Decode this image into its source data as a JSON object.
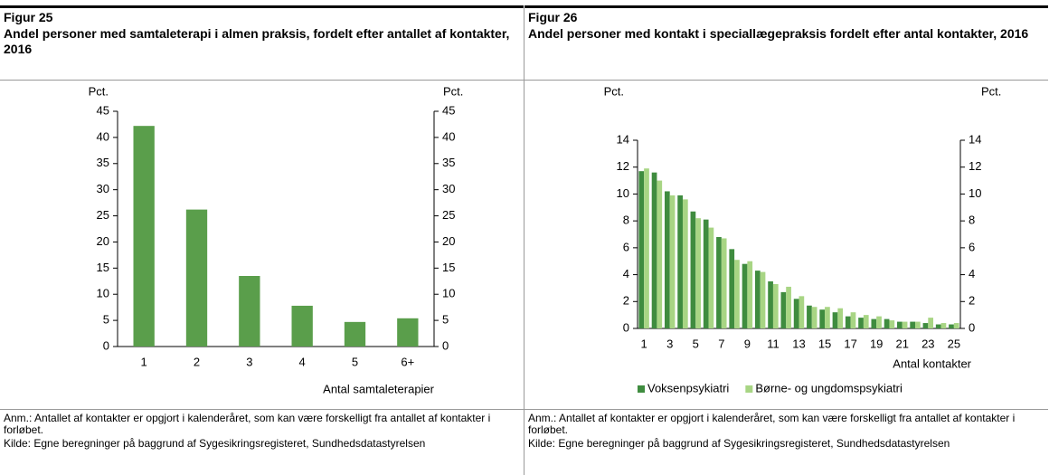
{
  "chart_data": [
    {
      "type": "bar",
      "figure_label": "Figur 25",
      "title": "Andel personer med samtaleterapi i almen praksis, fordelt efter antallet af kontakter, 2016",
      "y_label": "Pct.",
      "y2_label": "Pct.",
      "x_label": "Antal samtaleterapier",
      "categories": [
        "1",
        "2",
        "3",
        "4",
        "5",
        "6+"
      ],
      "series": [
        {
          "name": null,
          "color": "#5a9e4b",
          "values": [
            42.2,
            26.2,
            13.5,
            7.8,
            4.7,
            5.4
          ]
        }
      ],
      "ylim": [
        0,
        45
      ],
      "yticks": [
        0,
        5,
        10,
        15,
        20,
        25,
        30,
        35,
        40,
        45
      ],
      "y2lim": [
        0,
        45
      ],
      "y2ticks": [
        0,
        5,
        10,
        15,
        20,
        25,
        30,
        35,
        40,
        45
      ],
      "note": "Anm.: Antallet af kontakter er opgjort i kalenderåret, som kan være forskelligt fra antallet af kontakter i forløbet.",
      "source": "Kilde: Egne beregninger på baggrund af Sygesikringsregisteret, Sundhedsdatastyrelsen"
    },
    {
      "type": "bar",
      "figure_label": "Figur 26",
      "title": "Andel personer med kontakt i speciallægepraksis fordelt efter antal kontakter, 2016",
      "y_label": "Pct.",
      "y2_label": "Pct.",
      "x_label": "Antal kontakter",
      "categories": [
        "1",
        null,
        "3",
        null,
        "5",
        null,
        "7",
        null,
        "9",
        null,
        "11",
        null,
        "13",
        null,
        "15",
        null,
        "17",
        null,
        "19",
        null,
        "21",
        null,
        "23",
        null,
        "25"
      ],
      "series": [
        {
          "name": "Voksenpsykiatri",
          "color": "#3f8c3f",
          "values": [
            11.7,
            11.6,
            10.2,
            9.9,
            8.7,
            8.1,
            6.8,
            5.9,
            4.8,
            4.3,
            3.5,
            2.7,
            2.2,
            1.7,
            1.4,
            1.2,
            0.9,
            0.8,
            0.7,
            0.7,
            0.5,
            0.5,
            0.4,
            0.3,
            0.3
          ]
        },
        {
          "name": "Børne- og ungdomspsykiatri",
          "color": "#a8d584",
          "values": [
            11.9,
            11.0,
            9.9,
            9.6,
            8.2,
            7.5,
            6.7,
            5.1,
            5.0,
            4.2,
            3.3,
            3.1,
            2.4,
            1.6,
            1.6,
            1.5,
            1.2,
            1.0,
            0.9,
            0.6,
            0.5,
            0.5,
            0.8,
            0.4,
            0.4
          ]
        }
      ],
      "ylim": [
        0,
        14
      ],
      "yticks": [
        0,
        2,
        4,
        6,
        8,
        10,
        12,
        14
      ],
      "y2lim": [
        0,
        14
      ],
      "y2ticks": [
        0,
        2,
        4,
        6,
        8,
        10,
        12,
        14
      ],
      "legend": "bottom",
      "note": "Anm.: Antallet af kontakter er opgjort i kalenderåret, som kan være forskelligt fra antallet af kontakter i forløbet.",
      "source": "Kilde: Egne beregninger på baggrund af Sygesikringsregisteret, Sundhedsdatastyrelsen"
    }
  ]
}
